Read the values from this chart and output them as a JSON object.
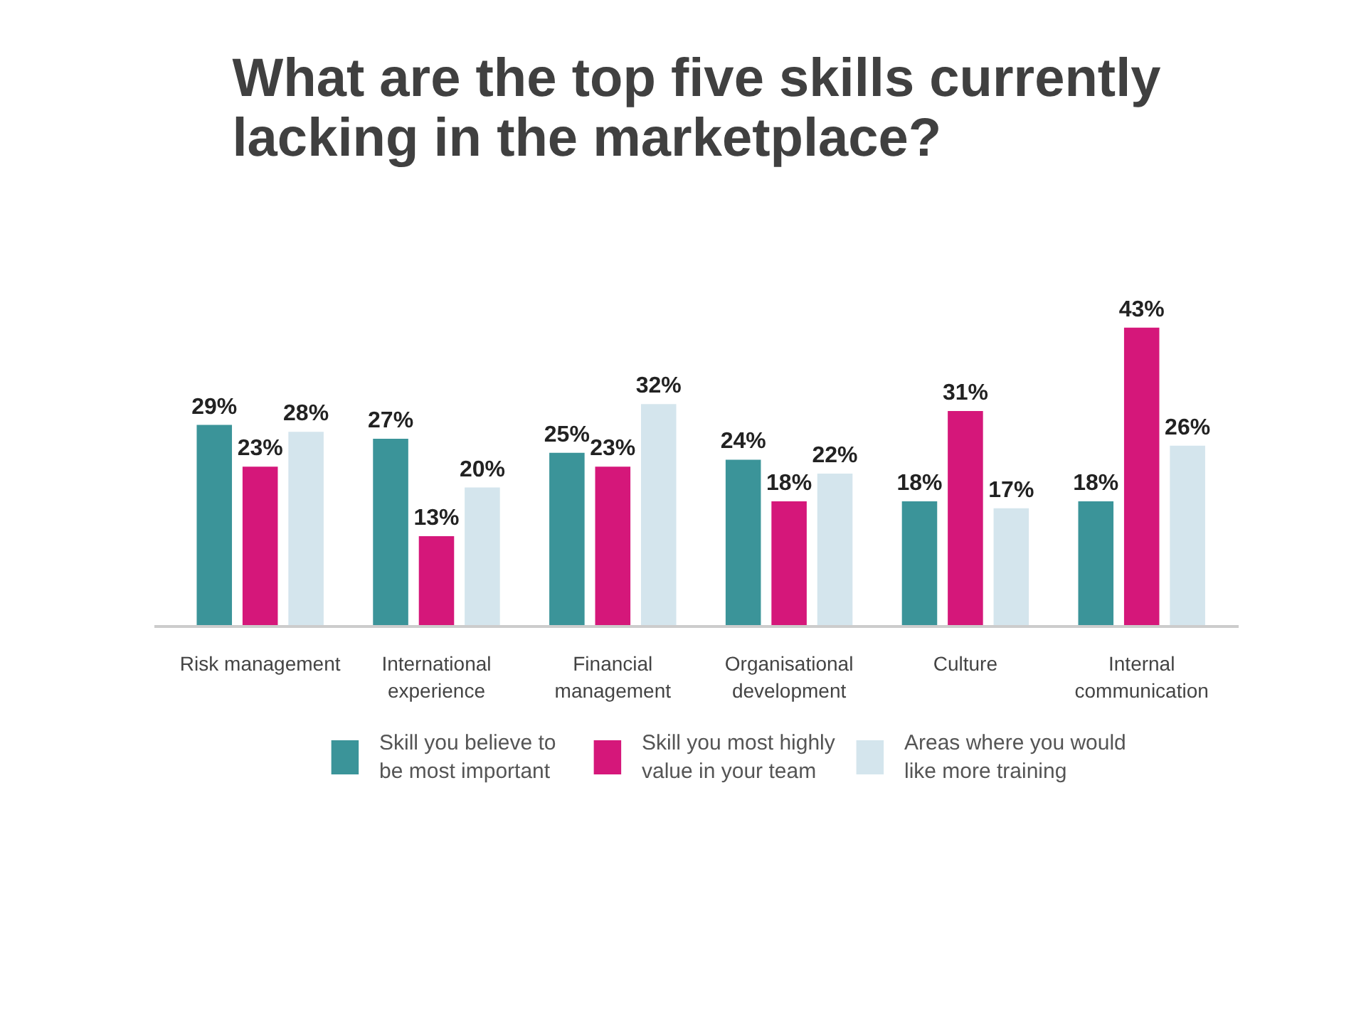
{
  "chart_data": {
    "type": "bar",
    "title": "What are the top five skills currently lacking in the marketplace?",
    "categories": [
      "Risk management",
      "International experience",
      "Financial management",
      "Organisational development",
      "Culture",
      "Internal communication"
    ],
    "series": [
      {
        "name": "Skill you believe to be most important",
        "color": "#3b9499",
        "values": [
          29,
          27,
          25,
          24,
          18,
          18
        ],
        "value_labels": [
          "29%",
          "27%",
          "25%",
          "24%",
          "18%",
          "18%"
        ]
      },
      {
        "name": "Skill you most highly value in your team",
        "color": "#d5177a",
        "values": [
          23,
          13,
          23,
          18,
          31,
          43
        ],
        "value_labels": [
          "23%",
          "13%",
          "23%",
          "18%",
          "31%",
          "43%"
        ]
      },
      {
        "name": "Areas where you would like more training",
        "color": "#d4e5ed",
        "values": [
          28,
          20,
          32,
          22,
          17,
          26
        ],
        "value_labels": [
          "28%",
          "20%",
          "32%",
          "22%",
          "17%",
          "26%"
        ]
      }
    ],
    "legend": "bottom",
    "grid": false,
    "tick_labels": "x"
  }
}
